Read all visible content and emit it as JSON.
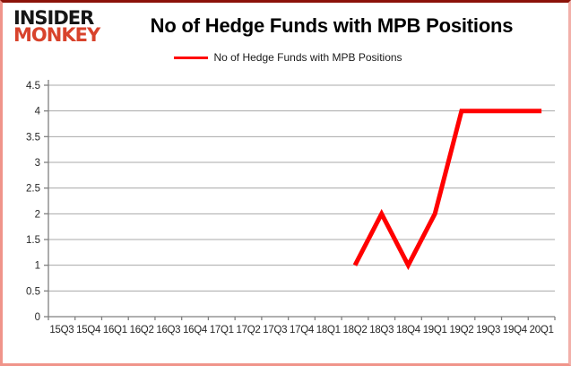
{
  "logo": {
    "line1": "INSIDER",
    "line2": "MONKEY"
  },
  "header": {
    "title": "No of Hedge Funds with MPB Positions"
  },
  "legend": {
    "label": "No of Hedge Funds with MPB Positions"
  },
  "colors": {
    "series": "#ff0000",
    "gridline": "#a8a8a8",
    "axis": "#808080",
    "tick_label": "#262626",
    "logo_red": "#d8432c",
    "border_top": "#8b1209",
    "border_side": "#f0948a"
  },
  "chart_data": {
    "type": "line",
    "title": "No of Hedge Funds with MPB Positions",
    "categories": [
      "15Q3",
      "15Q4",
      "16Q1",
      "16Q2",
      "16Q3",
      "16Q4",
      "17Q1",
      "17Q2",
      "17Q3",
      "17Q4",
      "18Q1",
      "18Q2",
      "18Q3",
      "18Q4",
      "19Q1",
      "19Q2",
      "19Q3",
      "19Q4",
      "20Q1"
    ],
    "series": [
      {
        "name": "No of Hedge Funds with MPB Positions",
        "color": "#ff0000",
        "values": [
          null,
          null,
          null,
          null,
          null,
          null,
          null,
          null,
          null,
          null,
          null,
          1,
          2,
          1,
          2,
          4,
          4,
          4,
          4
        ]
      }
    ],
    "ylim": [
      0,
      4.5
    ],
    "ytick_step": 0.5,
    "ytick_labels": [
      "0",
      "0.5",
      "1",
      "1.5",
      "2",
      "2.5",
      "3",
      "3.5",
      "4",
      "4.5"
    ],
    "grid": true,
    "legend_position": "top"
  }
}
